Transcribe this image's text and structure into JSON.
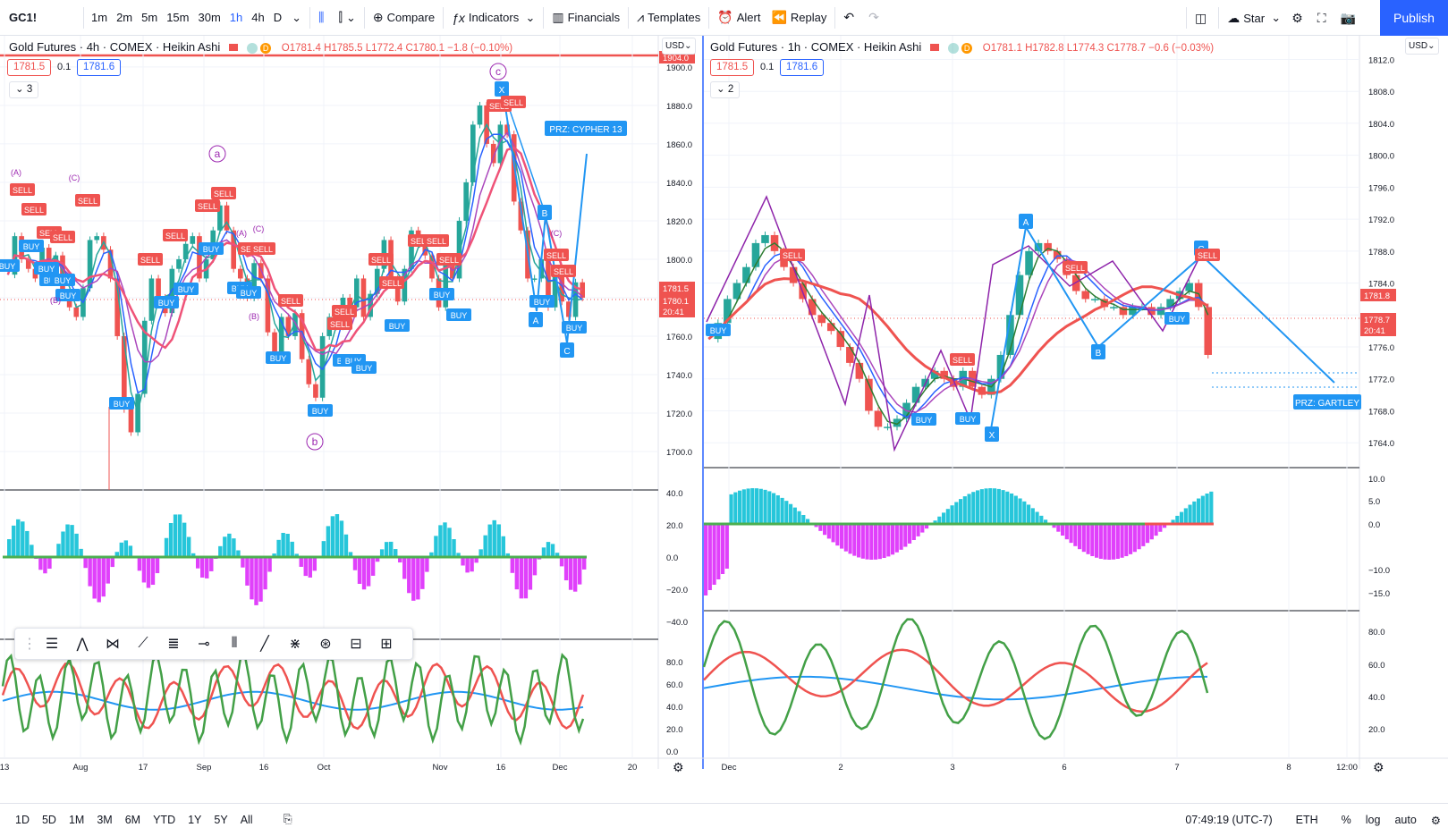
{
  "toolbar": {
    "symbol": "GC1!",
    "intervals": [
      "1m",
      "2m",
      "5m",
      "15m",
      "30m",
      "1h",
      "4h",
      "D"
    ],
    "active_interval": "1h",
    "compare": "Compare",
    "indicators": "Indicators",
    "financials": "Financials",
    "templates": "Templates",
    "alert": "Alert",
    "replay": "Replay",
    "star": "Star",
    "publish": "Publish"
  },
  "left": {
    "title": "Gold Futures · 4h · COMEX · Heikin Ashi",
    "ohlc": "O1781.4 H1785.5 L1772.4 C1780.1 −1.8 (−0.10%)",
    "bid": "1781.5",
    "spread": "0.1",
    "ask": "1781.6",
    "collapse": "3",
    "currency": "USD",
    "price_ticks": [
      "1900.0",
      "1880.0",
      "1860.0",
      "1840.0",
      "1820.0",
      "1800.0",
      "1780.0",
      "1760.0",
      "1740.0",
      "1720.0",
      "1700.0"
    ],
    "top_label": "1904.0",
    "price_label": "1781.5",
    "price_label2": "1780.1",
    "countdown": "20:41",
    "osc1_ticks": [
      "40.0",
      "20.0",
      "0.0",
      "−20.0",
      "−40.0"
    ],
    "osc2_ticks": [
      "80.0",
      "60.0",
      "40.0",
      "20.0",
      "0.0"
    ],
    "time_ticks": [
      "13",
      "Aug",
      "17",
      "Sep",
      "16",
      "Oct",
      "Nov",
      "16",
      "Dec",
      "20"
    ],
    "prz": "PRZ: CYPHER 13",
    "waves": {
      "a": "a",
      "b": "b",
      "c": "c",
      "A1": "(A)",
      "C1": "(C)",
      "A2": "(A)",
      "C2": "(C)",
      "B1": "(B)",
      "B2": "(B)",
      "C3": "(C)"
    },
    "points": {
      "X": "X",
      "A": "A",
      "B": "B",
      "C": "C"
    },
    "sell": "SELL",
    "buy": "BUY"
  },
  "right": {
    "title": "Gold Futures · 1h · COMEX · Heikin Ashi",
    "ohlc": "O1781.1 H1782.8 L1774.3 C1778.7 −0.6 (−0.03%)",
    "bid": "1781.5",
    "spread": "0.1",
    "ask": "1781.6",
    "collapse": "2",
    "currency": "USD",
    "price_ticks": [
      "1812.0",
      "1808.0",
      "1804.0",
      "1800.0",
      "1796.0",
      "1792.0",
      "1788.0",
      "1784.0",
      "1780.0",
      "1776.0",
      "1772.0",
      "1768.0",
      "1764.0"
    ],
    "price_label": "1781.8",
    "price_label2": "1778.7",
    "countdown": "20:41",
    "osc1_ticks": [
      "10.0",
      "5.0",
      "0.0",
      "−10.0",
      "−15.0"
    ],
    "osc2_ticks": [
      "80.0",
      "60.0",
      "40.0",
      "20.0"
    ],
    "time_ticks": [
      "Dec",
      "2",
      "3",
      "6",
      "7",
      "8",
      "12:00"
    ],
    "prz": "PRZ: GARTLEY",
    "points": {
      "X": "X",
      "A": "A",
      "B": "B",
      "C": "C"
    },
    "sell": "SELL",
    "buy": "BUY"
  },
  "bottom": {
    "ranges": [
      "1D",
      "5D",
      "1M",
      "3M",
      "6M",
      "YTD",
      "1Y",
      "5Y",
      "All"
    ],
    "time": "07:49:19 (UTC-7)",
    "session": "ETH",
    "pct": "%",
    "log": "log",
    "auto": "auto"
  },
  "colors": {
    "accent": "#2962ff",
    "bull": "#26a69a",
    "bear": "#ef5350",
    "cyan": "#26c6da",
    "magenta": "#e040fb",
    "pattern": "#2196f3",
    "purple": "#9c27b0"
  }
}
